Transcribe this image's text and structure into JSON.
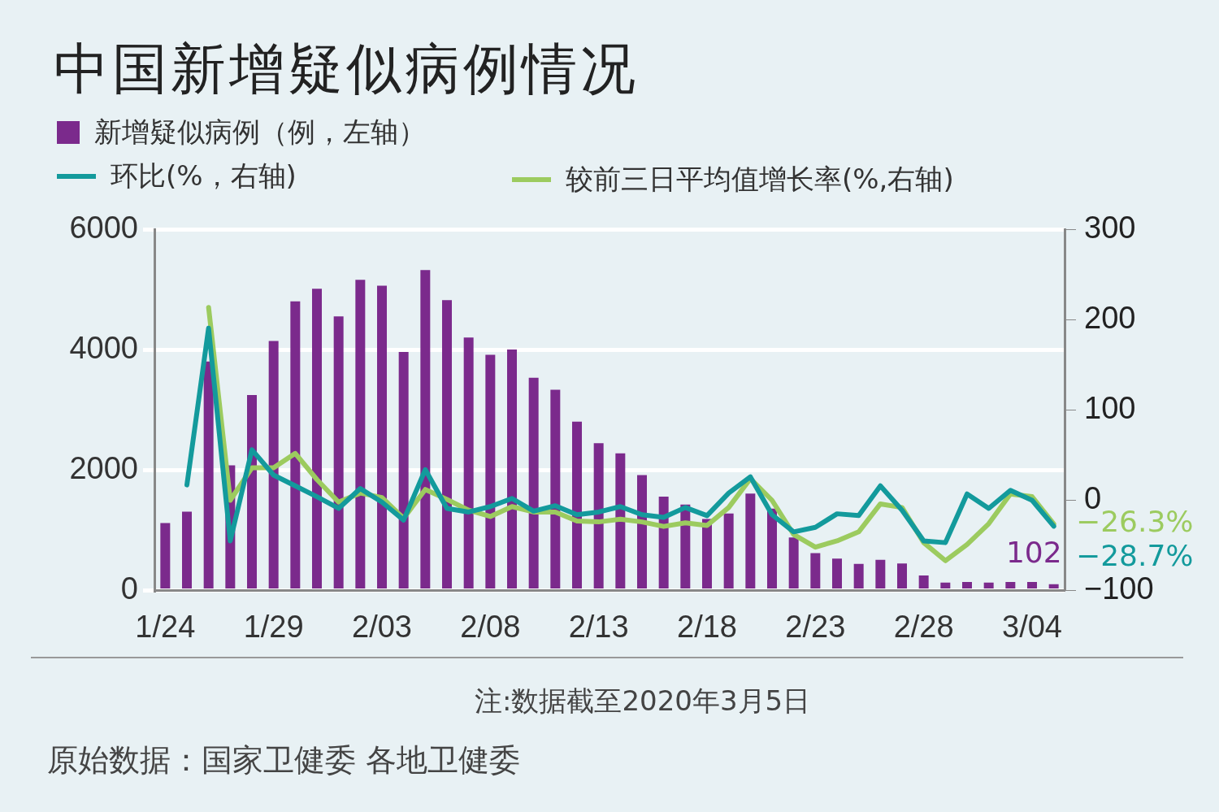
{
  "chart_data": {
    "type": "bar",
    "title": "中国新增疑似病例情况",
    "categories": [
      "1/24",
      null,
      null,
      null,
      null,
      "1/29",
      null,
      null,
      null,
      null,
      "2/03",
      null,
      null,
      null,
      null,
      "2/08",
      null,
      null,
      null,
      null,
      "2/13",
      null,
      null,
      null,
      null,
      "2/18",
      null,
      null,
      null,
      null,
      "2/23",
      null,
      null,
      null,
      null,
      "2/28",
      null,
      null,
      null,
      null,
      "3/04",
      null
    ],
    "series": [
      {
        "name": "新增疑似病例（例，左轴）",
        "color": "#7b2a8c",
        "values": [
          1120,
          1310,
          3810,
          2080,
          3250,
          4150,
          4810,
          5020,
          4560,
          5170,
          5070,
          3970,
          5330,
          4830,
          4210,
          3920,
          4010,
          3540,
          3340,
          2810,
          2450,
          2280,
          1920,
          1560,
          1430,
          1190,
          1280,
          1610,
          1360,
          880,
          620,
          530,
          440,
          510,
          450,
          250,
          130,
          140,
          130,
          140,
          140,
          102
        ],
        "value_labels": [
          null,
          null,
          null,
          null,
          null,
          null,
          null,
          null,
          null,
          null,
          null,
          null,
          null,
          null,
          null,
          null,
          null,
          null,
          null,
          null,
          null,
          null,
          null,
          null,
          null,
          null,
          null,
          null,
          null,
          null,
          null,
          null,
          null,
          null,
          null,
          null,
          null,
          null,
          null,
          null,
          null,
          "102"
        ]
      },
      {
        "name": "环比(%，右轴)",
        "type": "line",
        "axis": "y2",
        "color": "#139a9c",
        "values": [
          null,
          17,
          191,
          -45,
          56,
          28,
          16,
          4,
          -9,
          13,
          -2,
          -22,
          34,
          -9,
          -13,
          -7,
          2,
          -12,
          -6,
          -16,
          -13,
          -7,
          -16,
          -19,
          -8,
          -17,
          8,
          26,
          -16,
          -35,
          -30,
          -15,
          -17,
          16,
          -11,
          -45,
          -47,
          7,
          -9,
          11,
          0,
          -28.7
        ],
        "value_labels": [
          null,
          null,
          null,
          null,
          null,
          null,
          null,
          null,
          null,
          null,
          null,
          null,
          null,
          null,
          null,
          null,
          null,
          null,
          null,
          null,
          null,
          null,
          null,
          null,
          null,
          null,
          null,
          null,
          null,
          null,
          null,
          null,
          null,
          null,
          null,
          null,
          null,
          null,
          null,
          null,
          null,
          "−28.7%"
        ]
      },
      {
        "name": "较前三日平均值增长率(%,右轴)",
        "type": "line",
        "axis": "y2",
        "color": "#9ccb5f",
        "values": [
          null,
          null,
          214,
          0,
          36,
          36,
          52,
          23,
          -2,
          8,
          3,
          -20,
          12,
          1,
          -11,
          -18,
          -7,
          -13,
          -13,
          -23,
          -24,
          -21,
          -24,
          -29,
          -25,
          -28,
          -8,
          24,
          0,
          -38,
          -52,
          -45,
          -35,
          -4,
          -8,
          -47,
          -67,
          -49,
          -26,
          7,
          4,
          -26.3
        ],
        "value_labels": [
          null,
          null,
          null,
          null,
          null,
          null,
          null,
          null,
          null,
          null,
          null,
          null,
          null,
          null,
          null,
          null,
          null,
          null,
          null,
          null,
          null,
          null,
          null,
          null,
          null,
          null,
          null,
          null,
          null,
          null,
          null,
          null,
          null,
          null,
          null,
          null,
          null,
          null,
          null,
          null,
          null,
          "−26.3%"
        ]
      }
    ],
    "ylim": [
      0,
      6000
    ],
    "yticks": [
      0,
      2000,
      4000,
      6000
    ],
    "y2lim": [
      -100,
      300
    ],
    "y2ticks": [
      {
        "value": -100,
        "label": "−100"
      },
      0,
      100,
      200,
      300
    ],
    "grid": "y",
    "legend": "top left",
    "marker": "none",
    "line_style": "solid",
    "annotations": [
      "注:数据截至2020年3月5日",
      "原始数据：国家卫健委 各地卫健委"
    ]
  }
}
